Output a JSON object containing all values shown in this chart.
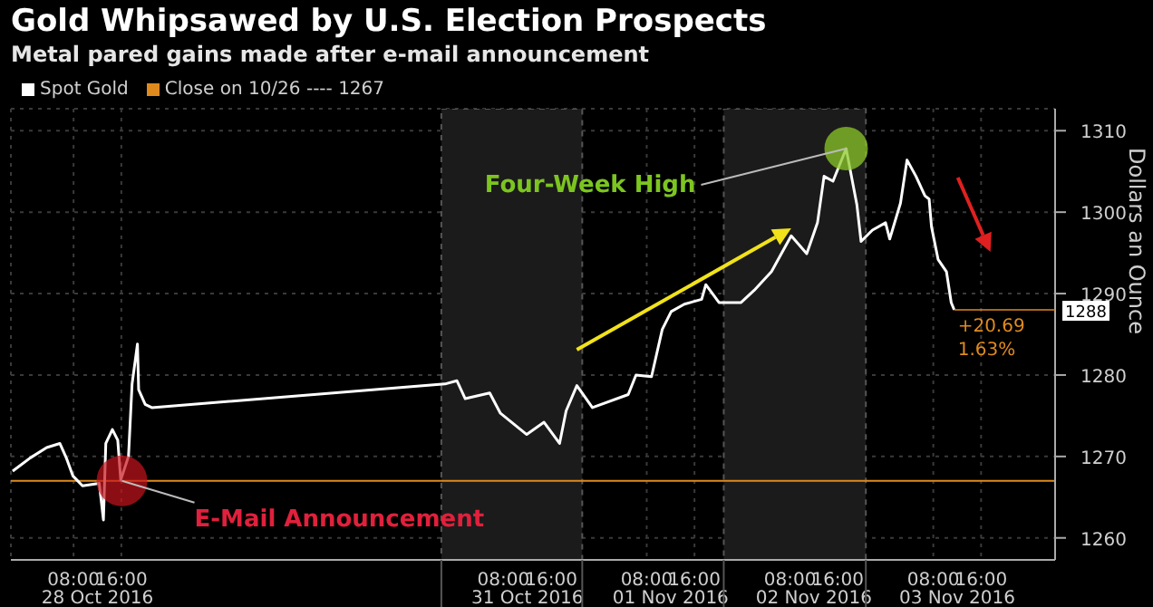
{
  "chart_data": {
    "type": "line",
    "title": "Gold Whipsawed by U.S. Election Prospects",
    "subtitle": "Metal pared gains made after e-mail announcement",
    "ylabel": "Dollars an Ounce",
    "x": [
      "2016-10-27T21:48",
      "2016-10-28T00:42",
      "2016-10-28T03:30",
      "2016-10-28T05:42",
      "2016-10-28T06:48",
      "2016-10-28T07:54",
      "2016-10-28T09:30",
      "2016-10-28T12:18",
      "2016-10-28T13:00",
      "2016-10-28T13:24",
      "2016-10-28T14:30",
      "2016-10-28T15:24",
      "2016-10-28T15:54",
      "2016-10-28T17:12",
      "2016-10-28T17:48",
      "2016-10-28T18:42",
      "2016-10-28T18:54",
      "2016-10-28T20:00",
      "2016-10-28T21:06",
      "2016-10-30T22:12",
      "2016-10-31T00:12",
      "2016-10-31T01:36",
      "2016-10-31T05:42",
      "2016-10-31T07:30",
      "2016-10-31T11:54",
      "2016-10-31T14:48",
      "2016-10-31T17:24",
      "2016-10-31T18:30",
      "2016-10-31T20:18",
      "2016-10-31T22:54",
      "2016-11-01T04:54",
      "2016-11-01T06:12",
      "2016-11-01T08:48",
      "2016-11-01T10:36",
      "2016-11-01T12:06",
      "2016-11-01T14:18",
      "2016-11-01T17:12",
      "2016-11-01T17:54",
      "2016-11-01T20:06",
      "2016-11-01T23:48",
      "2016-11-02T02:00",
      "2016-11-02T04:54",
      "2016-11-02T08:12",
      "2016-11-02T10:48",
      "2016-11-02T12:36",
      "2016-11-02T13:42",
      "2016-11-02T15:12",
      "2016-11-02T17:24",
      "2016-11-02T19:12",
      "2016-11-02T19:54",
      "2016-11-02T21:48",
      "2016-11-03T00:00",
      "2016-11-03T00:42",
      "2016-11-03T02:30",
      "2016-11-03T03:36",
      "2016-11-03T05:06",
      "2016-11-03T06:36",
      "2016-11-03T07:18",
      "2016-11-03T07:42",
      "2016-11-03T08:48",
      "2016-11-03T10:12",
      "2016-11-03T11:00",
      "2016-11-03T11:30"
    ],
    "series": [
      {
        "name": "Spot Gold",
        "color": "#ffffff",
        "values": [
          1268.2,
          1269.8,
          1271.1,
          1271.6,
          1269.8,
          1267.6,
          1266.4,
          1266.7,
          1262.2,
          1271.6,
          1273.3,
          1272,
          1267.1,
          1270,
          1278.9,
          1283.8,
          1278.2,
          1276.4,
          1276,
          1278.9,
          1279.3,
          1277.1,
          1277.8,
          1275.3,
          1272.7,
          1274.2,
          1271.6,
          1275.6,
          1278.7,
          1276,
          1277.6,
          1280,
          1279.8,
          1285.6,
          1287.8,
          1288.7,
          1289.3,
          1291.1,
          1288.9,
          1288.9,
          1290.4,
          1292.7,
          1297.1,
          1294.9,
          1298.7,
          1304.4,
          1303.8,
          1307.8,
          1300.9,
          1296.4,
          1297.8,
          1298.7,
          1296.7,
          1301.1,
          1306.4,
          1304.4,
          1302,
          1301.6,
          1298.2,
          1294.2,
          1292.7,
          1288.9,
          1288
        ]
      }
    ],
    "xlim": [
      "2016-10-27T21:30",
      "2016-11-04T04:24"
    ],
    "xticks": [
      {
        "value": "2016-10-28T08:00",
        "label": "08:00"
      },
      {
        "value": "2016-10-28T16:00",
        "label": "16:00"
      },
      {
        "value": "2016-10-31T08:00",
        "label": "08:00"
      },
      {
        "value": "2016-10-31T16:00",
        "label": "16:00"
      },
      {
        "value": "2016-11-01T08:00",
        "label": "08:00"
      },
      {
        "value": "2016-11-01T16:00",
        "label": "16:00"
      },
      {
        "value": "2016-11-02T08:00",
        "label": "08:00"
      },
      {
        "value": "2016-11-02T16:00",
        "label": "16:00"
      },
      {
        "value": "2016-11-03T08:00",
        "label": "08:00"
      },
      {
        "value": "2016-11-03T16:00",
        "label": "16:00"
      }
    ],
    "ylim": [
      1257.3,
      1312.7
    ],
    "yticks": [
      1260,
      1270,
      1280,
      1290,
      1300,
      1310
    ],
    "grid": true,
    "legend": "top left",
    "ref_lines": [
      {
        "axis": "y",
        "value": 1267,
        "label": "Close on 10/26 ---- 1267",
        "color": "#e08a1e"
      }
    ],
    "bands": [
      {
        "axis": "x",
        "from": "2016-10-30T21:36",
        "to": "2016-10-31T21:12",
        "color": "#1b1b1b"
      },
      {
        "axis": "x",
        "from": "2016-11-01T20:54",
        "to": "2016-11-02T20:42",
        "color": "#1b1b1b"
      }
    ],
    "annotations": [
      {
        "text": "Four-Week High",
        "x": "2016-11-02T17:24",
        "y": 1307.8
      },
      {
        "text": "E-Mail Announcement",
        "x": "2016-10-28T16:06",
        "y": 1267
      },
      {
        "text": "1288",
        "x": "2016-11-03T11:30",
        "y": 1288
      },
      "+20.69",
      "1.63%",
      "28 Oct 2016",
      "31 Oct 2016",
      "01 Nov 2016",
      "02 Nov 2016",
      "03 Nov 2016"
    ]
  }
}
